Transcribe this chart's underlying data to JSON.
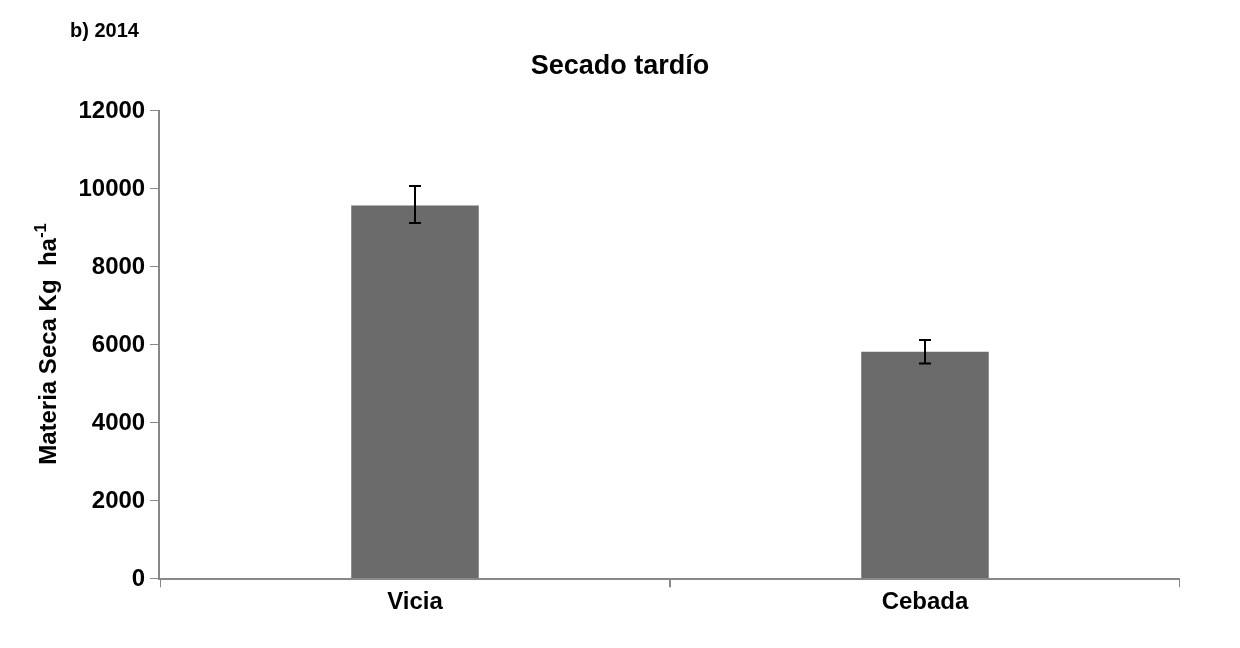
{
  "chart_data": {
    "type": "bar",
    "title": "Secado tardío",
    "ylabel": "Materia Seca Kg  ha$^{-1}$",
    "annotations": [
      "b) 2014"
    ],
    "categories": [
      "Vicia",
      "Cebada"
    ],
    "values": [
      9550,
      5800
    ],
    "color": "#6b6b6b",
    "errors": [
      [
        9100,
        10050
      ],
      [
        5500,
        6100
      ]
    ],
    "ylim": [
      0,
      12000
    ],
    "yticks": [
      0,
      2000,
      4000,
      6000,
      8000,
      10000,
      12000
    ]
  }
}
